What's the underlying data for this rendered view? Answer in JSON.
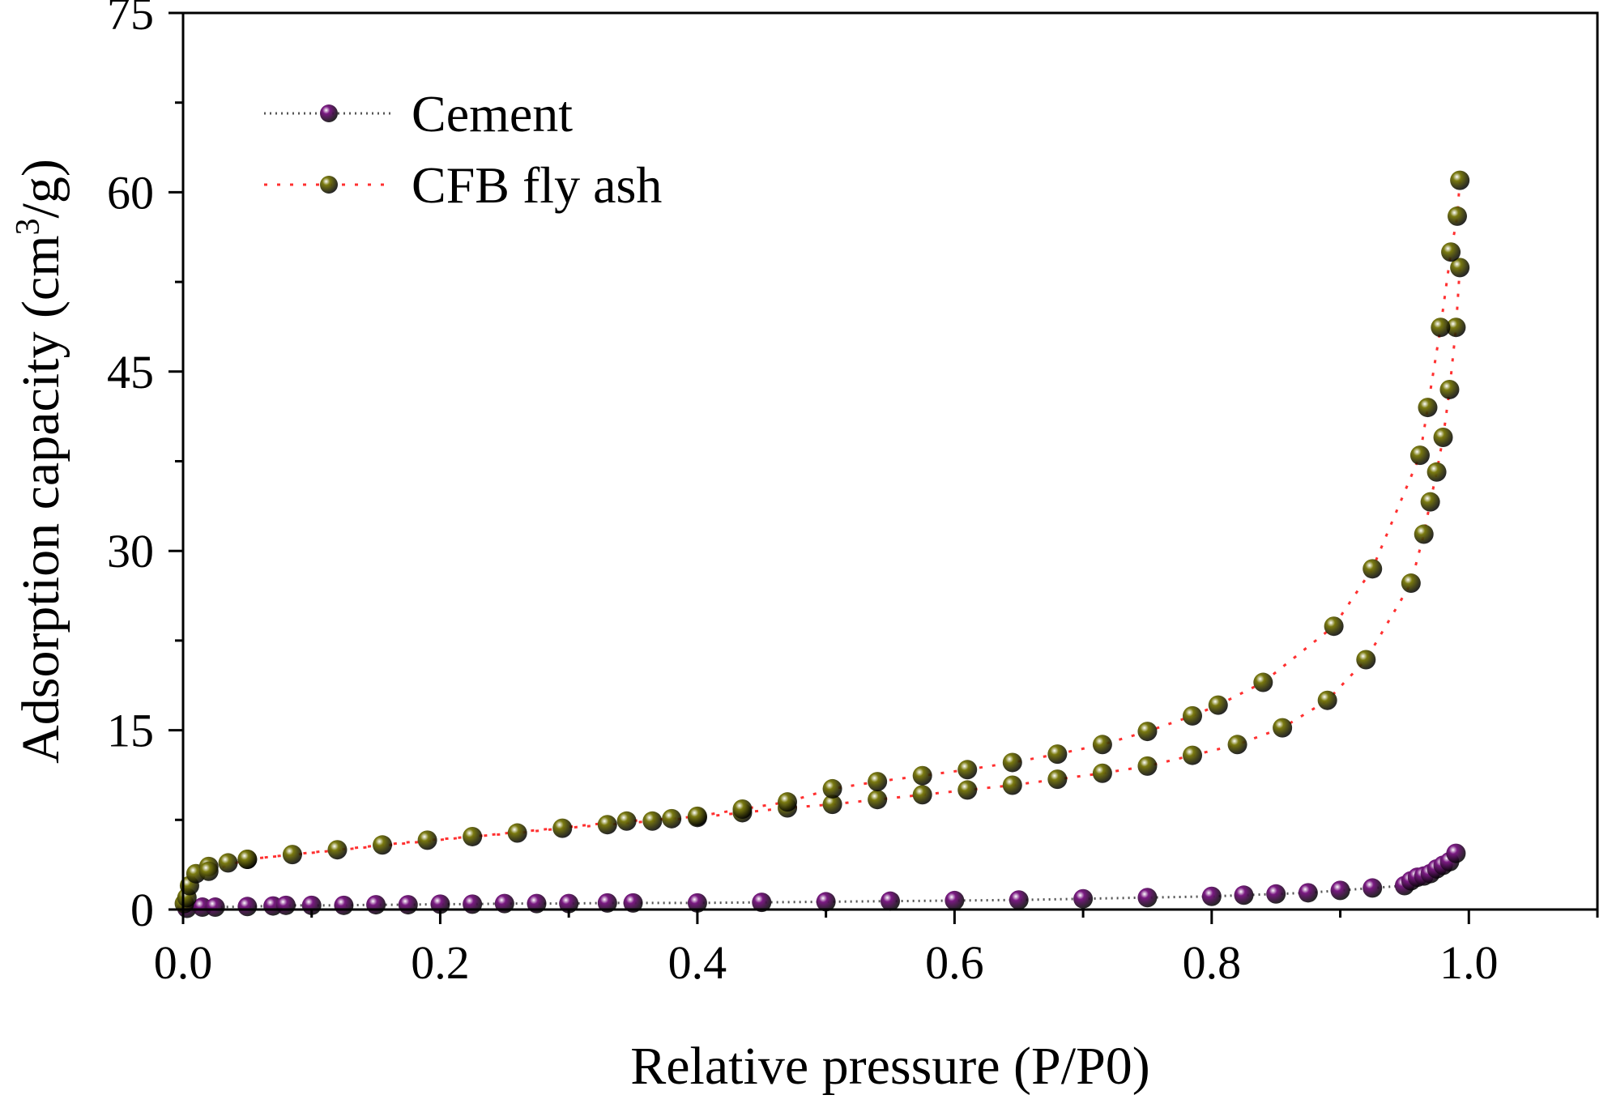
{
  "chart_data": {
    "type": "scatter",
    "title": "",
    "xlabel": "Relative pressure (P/P0)",
    "ylabel": {
      "prefix": "Adsorption capacity (cm",
      "superscript": "3",
      "suffix": "/g)"
    },
    "xlim": [
      0.0,
      1.1
    ],
    "ylim": [
      0,
      75
    ],
    "xticks": [
      0.0,
      0.2,
      0.4,
      0.6,
      0.8,
      1.0
    ],
    "xtick_labels": [
      "0.0",
      "0.2",
      "0.4",
      "0.6",
      "0.8",
      "1.0"
    ],
    "yticks": [
      0,
      15,
      30,
      45,
      60,
      75
    ],
    "ytick_labels": [
      "0",
      "15",
      "30",
      "45",
      "60",
      "75"
    ],
    "legend_position": "top-left",
    "grid": false,
    "series": [
      {
        "name": "Cement",
        "color": "#7a1a82",
        "line_color": "#555555",
        "line_style": "dotted",
        "x": [
          0.003,
          0.015,
          0.025,
          0.05,
          0.07,
          0.08,
          0.1,
          0.125,
          0.15,
          0.175,
          0.2,
          0.225,
          0.25,
          0.275,
          0.3,
          0.33,
          0.35,
          0.4,
          0.45,
          0.5,
          0.55,
          0.6,
          0.65,
          0.7,
          0.75,
          0.8,
          0.825,
          0.85,
          0.875,
          0.9,
          0.925,
          0.95,
          0.955,
          0.96,
          0.965,
          0.97,
          0.975,
          0.98,
          0.985,
          0.99
        ],
        "y": [
          0.1,
          0.2,
          0.2,
          0.25,
          0.3,
          0.35,
          0.35,
          0.35,
          0.4,
          0.4,
          0.45,
          0.45,
          0.5,
          0.5,
          0.5,
          0.55,
          0.55,
          0.55,
          0.6,
          0.65,
          0.7,
          0.75,
          0.8,
          0.9,
          1.0,
          1.1,
          1.2,
          1.3,
          1.4,
          1.6,
          1.8,
          2.0,
          2.4,
          2.7,
          2.8,
          3.0,
          3.4,
          3.7,
          4.0,
          4.7
        ]
      },
      {
        "name": "CFB fly ash",
        "color": "#7a7a10",
        "line_color": "#ff3030",
        "line_style": "dotted",
        "adsorption": {
          "x": [
            0.001,
            0.003,
            0.005,
            0.01,
            0.02,
            0.035,
            0.05,
            0.085,
            0.12,
            0.155,
            0.19,
            0.225,
            0.26,
            0.295,
            0.33,
            0.365,
            0.4,
            0.435,
            0.47,
            0.505,
            0.54,
            0.575,
            0.61,
            0.645,
            0.68,
            0.715,
            0.75,
            0.785,
            0.82,
            0.855,
            0.89,
            0.92,
            0.955,
            0.965,
            0.97,
            0.975,
            0.98,
            0.985,
            0.99,
            0.993
          ],
          "y": [
            0.5,
            1.0,
            2.0,
            3.0,
            3.6,
            3.9,
            4.2,
            4.6,
            5.0,
            5.4,
            5.8,
            6.1,
            6.4,
            6.8,
            7.1,
            7.4,
            7.7,
            8.1,
            8.5,
            8.8,
            9.2,
            9.6,
            10.0,
            10.4,
            10.9,
            11.4,
            12.0,
            12.9,
            13.8,
            15.2,
            17.5,
            20.9,
            27.3,
            31.4,
            34.1,
            36.6,
            39.5,
            43.5,
            48.7,
            53.7
          ]
        },
        "desorption": {
          "x": [
            0.993,
            0.991,
            0.986,
            0.978,
            0.968,
            0.962,
            0.925,
            0.895,
            0.84,
            0.805,
            0.785,
            0.75,
            0.715,
            0.68,
            0.645,
            0.61,
            0.575,
            0.54,
            0.505,
            0.47,
            0.435,
            0.4,
            0.38,
            0.345,
            0.05,
            0.02
          ],
          "y": [
            61.0,
            58.0,
            55.0,
            48.7,
            42.0,
            38.0,
            28.5,
            23.7,
            19.0,
            17.1,
            16.2,
            14.9,
            13.8,
            13.0,
            12.3,
            11.7,
            11.2,
            10.7,
            10.1,
            9.0,
            8.4,
            7.8,
            7.6,
            7.4,
            4.2,
            3.2
          ]
        }
      }
    ]
  }
}
